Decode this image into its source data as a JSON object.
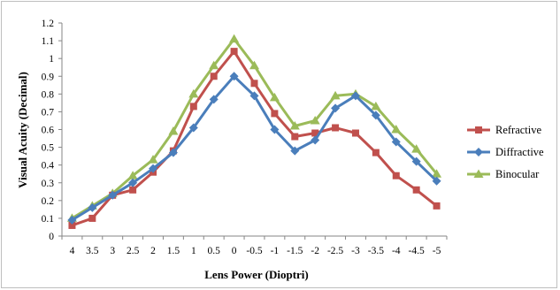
{
  "chart_data": {
    "type": "line",
    "title": "",
    "xlabel": "Lens Power (Dioptri)",
    "ylabel": "Visual Acuity (Decimal)",
    "x": [
      "4",
      "3.5",
      "3",
      "2.5",
      "2",
      "1.5",
      "1",
      "0.5",
      "0",
      "-0.5",
      "-1",
      "-1.5",
      "-2",
      "-2.5",
      "-3",
      "-3.5",
      "-4",
      "-4.5",
      "-5"
    ],
    "yticks": [
      "0",
      "0.1",
      "0.2",
      "0.3",
      "0.4",
      "0.5",
      "0.6",
      "0.7",
      "0.8",
      "0.9",
      "1",
      "1.1",
      "1.2"
    ],
    "ylim": [
      0,
      1.2
    ],
    "grid": false,
    "legend_position": "right",
    "series": [
      {
        "name": "Refractive",
        "color": "#c0504d",
        "marker": "square",
        "values": [
          0.06,
          0.1,
          0.23,
          0.26,
          0.36,
          0.48,
          0.73,
          0.9,
          1.04,
          0.86,
          0.69,
          0.56,
          0.58,
          0.61,
          0.58,
          0.47,
          0.34,
          0.26,
          0.17
        ]
      },
      {
        "name": "Diffractive",
        "color": "#4a7ebb",
        "marker": "diamond",
        "values": [
          0.09,
          0.16,
          0.23,
          0.3,
          0.38,
          0.47,
          0.61,
          0.77,
          0.9,
          0.79,
          0.6,
          0.48,
          0.54,
          0.72,
          0.79,
          0.68,
          0.53,
          0.42,
          0.31
        ]
      },
      {
        "name": "Binocular",
        "color": "#9bbb59",
        "marker": "triangle",
        "values": [
          0.1,
          0.17,
          0.24,
          0.34,
          0.43,
          0.59,
          0.8,
          0.96,
          1.11,
          0.96,
          0.78,
          0.62,
          0.65,
          0.79,
          0.8,
          0.73,
          0.6,
          0.49,
          0.35
        ]
      }
    ]
  }
}
